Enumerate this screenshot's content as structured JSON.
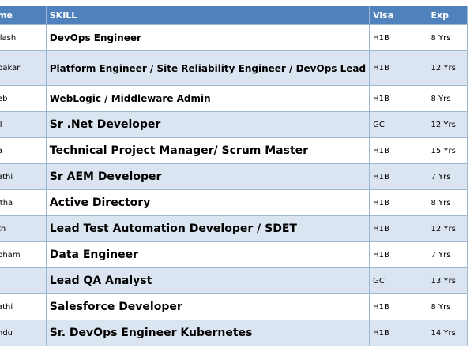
{
  "table": {
    "headers": {
      "name": "me",
      "skill": "SKILL",
      "visa": "Visa",
      "exp": "Exp"
    },
    "rows": [
      {
        "name": "ilash",
        "skill": "DevOps Engineer",
        "visa": "H1B",
        "exp": "8 Yrs"
      },
      {
        "name": "bakar",
        "skill": "Platform Engineer / Site Reliability Engineer / DevOps Lead",
        "visa": "H1B",
        "exp": "12 Yrs"
      },
      {
        "name": "eb",
        "skill": "WebLogic / Middleware Admin",
        "visa": "H1B",
        "exp": "8 Yrs"
      },
      {
        "name": "il",
        "skill": "Sr .Net Developer",
        "visa": "GC",
        "exp": "12 Yrs"
      },
      {
        "name": "a",
        "skill": "Technical Project Manager/ Scrum Master",
        "visa": "H1B",
        "exp": "15 Yrs"
      },
      {
        "name": "athi",
        "skill": "Sr AEM Developer",
        "visa": "H1B",
        "exp": "7 Yrs"
      },
      {
        "name": "itha",
        "skill": "Active Directory",
        "visa": "H1B",
        "exp": "8 Yrs"
      },
      {
        "name": "th",
        "skill": "Lead Test Automation Developer / SDET",
        "visa": "H1B",
        "exp": "12 Yrs"
      },
      {
        "name": "pham",
        "skill": "Data Engineer",
        "visa": "H1B",
        "exp": "7 Yrs"
      },
      {
        "name": "",
        "skill": "Lead QA Analyst",
        "visa": "GC",
        "exp": "13 Yrs"
      },
      {
        "name": "athi",
        "skill": "Salesforce Developer",
        "visa": "H1B",
        "exp": "8 Yrs"
      },
      {
        "name": "ndu",
        "skill": "Sr. DevOps Engineer Kubernetes",
        "visa": "H1B",
        "exp": "14 Yrs"
      }
    ]
  }
}
